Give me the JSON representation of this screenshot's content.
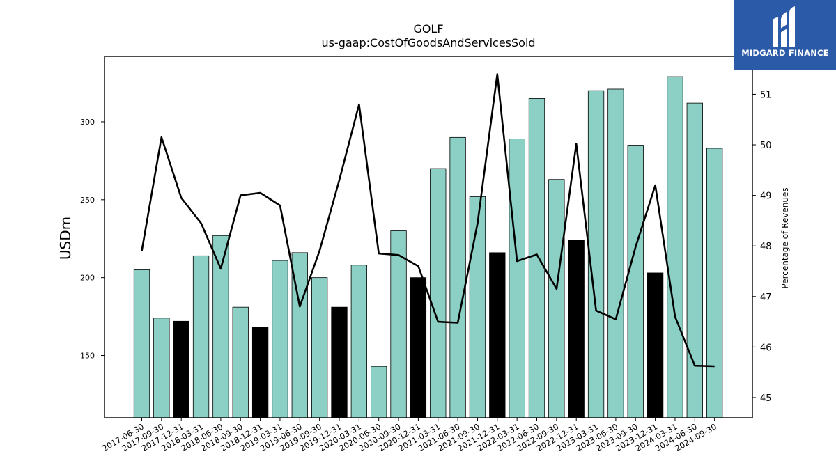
{
  "chart_data": {
    "type": "bar",
    "title": "GOLF",
    "subtitle": "us-gaap:CostOfGoodsAndServicesSold",
    "ylabel": "USDm",
    "y2label": "Percentage of Revenues",
    "ylim": [
      110,
      342
    ],
    "y2lim": [
      44.6,
      51.75
    ],
    "yticks": [
      150,
      200,
      250,
      300
    ],
    "y2ticks": [
      45,
      46,
      47,
      48,
      49,
      50,
      51
    ],
    "categories": [
      "2017-06-30",
      "2017-09-30",
      "2017-12-31",
      "2018-03-31",
      "2018-06-30",
      "2018-09-30",
      "2018-12-31",
      "2019-03-31",
      "2019-06-30",
      "2019-09-30",
      "2019-12-31",
      "2020-03-31",
      "2020-06-30",
      "2020-09-30",
      "2020-12-31",
      "2021-03-31",
      "2021-06-30",
      "2021-09-30",
      "2021-12-31",
      "2022-03-31",
      "2022-06-30",
      "2022-09-30",
      "2022-12-31",
      "2023-03-31",
      "2023-06-30",
      "2023-09-30",
      "2023-12-31",
      "2024-03-31",
      "2024-06-30",
      "2024-09-30"
    ],
    "series": [
      {
        "kind": "bar",
        "values": [
          205,
          174,
          172,
          214,
          227,
          181,
          168,
          211,
          216,
          200,
          181,
          208,
          143,
          230,
          200,
          270,
          290,
          252,
          216,
          289,
          315,
          263,
          224,
          320,
          321,
          285,
          203,
          329,
          312,
          283
        ],
        "highlight_year_end": true
      },
      {
        "kind": "line",
        "axis": "right",
        "values": [
          47.9,
          50.15,
          48.95,
          48.45,
          47.55,
          49.0,
          49.05,
          48.8,
          46.8,
          47.9,
          49.3,
          50.8,
          47.85,
          47.82,
          47.6,
          46.5,
          46.48,
          48.45,
          51.4,
          47.7,
          47.83,
          47.15,
          50.02,
          46.72,
          46.55,
          47.98,
          49.2,
          46.6,
          45.63,
          45.62
        ]
      }
    ],
    "colors": {
      "bar": "#8ccfc4",
      "bar_highlight": "#000000",
      "line": "#000000"
    },
    "grid": false,
    "legend": "none"
  },
  "logo": {
    "text": "MIDGARD FINANCE"
  }
}
